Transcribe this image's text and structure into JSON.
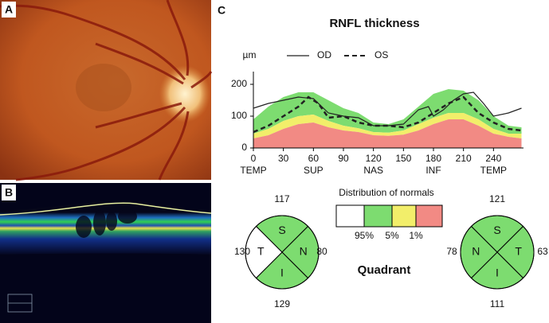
{
  "panel_labels": [
    "A",
    "B",
    "C"
  ],
  "chart_data": {
    "type": "line",
    "title": "RNFL thickness",
    "y_label": "µm",
    "xlim": [
      0,
      270
    ],
    "ylim": [
      0,
      240
    ],
    "xticks": [
      0,
      30,
      60,
      90,
      120,
      150,
      180,
      210,
      240
    ],
    "yticks": [
      0,
      100,
      200
    ],
    "region_labels": [
      {
        "value": 0,
        "label": "TEMP"
      },
      {
        "value": 60,
        "label": "SUP"
      },
      {
        "value": 120,
        "label": "NAS"
      },
      {
        "value": 180,
        "label": "INF"
      },
      {
        "value": 240,
        "label": "TEMP"
      }
    ],
    "series": [
      {
        "name": "OD",
        "color": "#222222",
        "dash": false,
        "x": [
          0,
          15,
          30,
          45,
          60,
          75,
          90,
          105,
          120,
          135,
          150,
          165,
          175,
          180,
          190,
          200,
          210,
          220,
          230,
          240,
          255,
          268
        ],
        "values": [
          125,
          140,
          150,
          160,
          155,
          110,
          100,
          95,
          70,
          70,
          75,
          120,
          130,
          100,
          120,
          150,
          170,
          175,
          140,
          100,
          110,
          125
        ]
      },
      {
        "name": "OS",
        "color": "#222222",
        "dash": true,
        "x": [
          0,
          15,
          30,
          45,
          55,
          65,
          75,
          90,
          105,
          120,
          135,
          150,
          165,
          180,
          195,
          210,
          225,
          240,
          255,
          268
        ],
        "values": [
          50,
          70,
          100,
          130,
          160,
          140,
          95,
          100,
          80,
          70,
          70,
          65,
          80,
          110,
          140,
          160,
          110,
          80,
          60,
          55
        ]
      }
    ],
    "normal_limits": {
      "x": [
        0,
        15,
        30,
        45,
        60,
        75,
        90,
        105,
        120,
        135,
        150,
        165,
        180,
        195,
        210,
        225,
        240,
        255,
        268
      ],
      "p95": [
        90,
        130,
        160,
        175,
        175,
        150,
        125,
        110,
        80,
        75,
        90,
        130,
        170,
        185,
        180,
        150,
        100,
        70,
        65
      ],
      "p5": [
        45,
        60,
        85,
        100,
        105,
        85,
        70,
        62,
        50,
        48,
        55,
        75,
        95,
        110,
        110,
        90,
        60,
        45,
        45
      ],
      "p1": [
        30,
        40,
        60,
        75,
        80,
        65,
        55,
        50,
        40,
        38,
        42,
        55,
        75,
        90,
        90,
        70,
        45,
        35,
        30
      ]
    }
  },
  "distribution": {
    "title": "Distribution of normals",
    "colors": [
      "#ffffff",
      "#7ddc70",
      "#f2ee6a",
      "#f28a84"
    ],
    "labels": [
      "95%",
      "5%",
      "1%"
    ]
  },
  "quadrant_title": "Quadrant",
  "quadrants": [
    {
      "sectors": [
        {
          "letter": "S",
          "value": 117,
          "color": "#7ddc70"
        },
        {
          "letter": "N",
          "value": 80,
          "color": "#7ddc70"
        },
        {
          "letter": "I",
          "value": 129,
          "color": "#7ddc70"
        },
        {
          "letter": "T",
          "value": 130,
          "color": "#ffffff"
        }
      ]
    },
    {
      "sectors": [
        {
          "letter": "S",
          "value": 121,
          "color": "#7ddc70"
        },
        {
          "letter": "T",
          "value": 63,
          "color": "#7ddc70"
        },
        {
          "letter": "I",
          "value": 111,
          "color": "#7ddc70"
        },
        {
          "letter": "N",
          "value": 78,
          "color": "#7ddc70"
        }
      ]
    }
  ]
}
